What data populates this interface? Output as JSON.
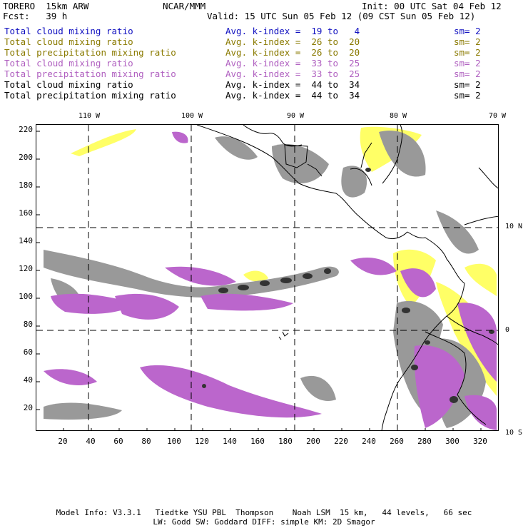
{
  "header": {
    "model": "TORERO  15km ARW",
    "org": "NCAR/MMM",
    "init": "Init: 00 UTC Sat 04 Feb 12",
    "fcst": "Fcst:   39 h",
    "valid": "Valid: 15 UTC Sun 05 Feb 12 (09 CST Sun 05 Feb 12)"
  },
  "legend": [
    {
      "field": "Total cloud mixing ratio",
      "kindex": "Avg. k-index =  19 to   4",
      "sm": "sm= 2",
      "color": "#1010c0"
    },
    {
      "field": "Total cloud mixing ratio",
      "kindex": "Avg. k-index =  26 to  20",
      "sm": "sm= 2",
      "color": "#8a7a00"
    },
    {
      "field": "Total precipitation mixing ratio",
      "kindex": "Avg. k-index =  26 to  20",
      "sm": "sm= 2",
      "color": "#8a7a00"
    },
    {
      "field": "Total cloud mixing ratio",
      "kindex": "Avg. k-index =  33 to  25",
      "sm": "sm= 2",
      "color": "#b060c0"
    },
    {
      "field": "Total precipitation mixing ratio",
      "kindex": "Avg. k-index =  33 to  25",
      "sm": "sm= 2",
      "color": "#b060c0"
    },
    {
      "field": "Total cloud mixing ratio",
      "kindex": "Avg. k-index =  44 to  34",
      "sm": "sm= 2",
      "color": "#000000"
    },
    {
      "field": "Total precipitation mixing ratio",
      "kindex": "Avg. k-index =  44 to  34",
      "sm": "sm= 2",
      "color": "#000000"
    }
  ],
  "axes": {
    "y_ticks": [
      "220",
      "200",
      "180",
      "160",
      "140",
      "120",
      "100",
      "80",
      "60",
      "40",
      "20"
    ],
    "x_ticks": [
      "20",
      "40",
      "60",
      "80",
      "100",
      "120",
      "140",
      "160",
      "180",
      "200",
      "220",
      "240",
      "260",
      "280",
      "300",
      "320"
    ],
    "lon_labels": [
      "110 W",
      "100 W",
      "90 W",
      "80 W",
      "70 W"
    ],
    "lat_labels": [
      "10 N",
      "0",
      "10 S"
    ]
  },
  "colors": {
    "gray": "#999999",
    "yellow": "#ffff66",
    "purple": "#bb66cc",
    "dark": "#333333"
  },
  "footer": {
    "line1": "Model Info: V3.3.1   Tiedtke YSU PBL  Thompson    Noah LSM  15 km,   44 levels,   66 sec",
    "line2": "LW: Godd SW: Goddard DIFF: simple KM: 2D Smagor"
  }
}
